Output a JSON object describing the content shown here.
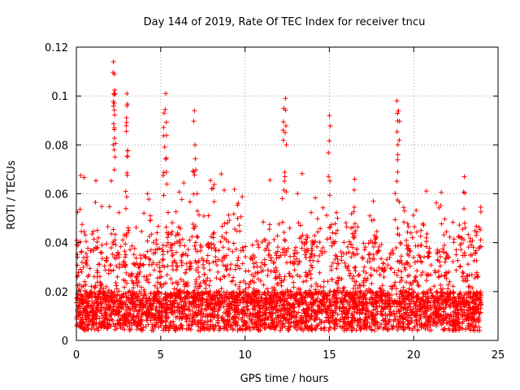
{
  "chart_data": {
    "type": "scatter",
    "title": "Day 144 of 2019, Rate Of TEC Index for receiver tncu",
    "xlabel": "GPS time / hours",
    "ylabel": "ROTI / TECUs",
    "xlim": [
      0,
      25
    ],
    "ylim": [
      0,
      0.12
    ],
    "x_ticks": [
      0,
      5,
      10,
      15,
      20,
      25
    ],
    "x_tick_labels": [
      "0",
      "5",
      "10",
      "15",
      "20",
      "25"
    ],
    "y_ticks": [
      0,
      0.02,
      0.04,
      0.06,
      0.08,
      0.1,
      0.12
    ],
    "y_tick_labels": [
      "0",
      "0.02",
      "0.04",
      "0.06",
      "0.08",
      "0.1",
      "0.12"
    ],
    "grid": true,
    "marker": "plus",
    "color": "#ff0000",
    "series": [
      {
        "x_range": [
          0,
          24
        ],
        "baseline_level": 0.012,
        "typical_max": 0.06,
        "notable_peaks": [
          {
            "x": 2.2,
            "y": 0.114
          },
          {
            "x": 2.25,
            "y": 0.109
          },
          {
            "x": 2.3,
            "y": 0.101
          },
          {
            "x": 3.0,
            "y": 0.101
          },
          {
            "x": 3.0,
            "y": 0.096
          },
          {
            "x": 5.3,
            "y": 0.101
          },
          {
            "x": 5.2,
            "y": 0.093
          },
          {
            "x": 7.0,
            "y": 0.094
          },
          {
            "x": 12.4,
            "y": 0.099
          },
          {
            "x": 12.3,
            "y": 0.095
          },
          {
            "x": 15.0,
            "y": 0.092
          },
          {
            "x": 19.0,
            "y": 0.098
          },
          {
            "x": 19.1,
            "y": 0.094
          },
          {
            "x": 16.5,
            "y": 0.066
          },
          {
            "x": 23.0,
            "y": 0.067
          }
        ]
      }
    ]
  }
}
